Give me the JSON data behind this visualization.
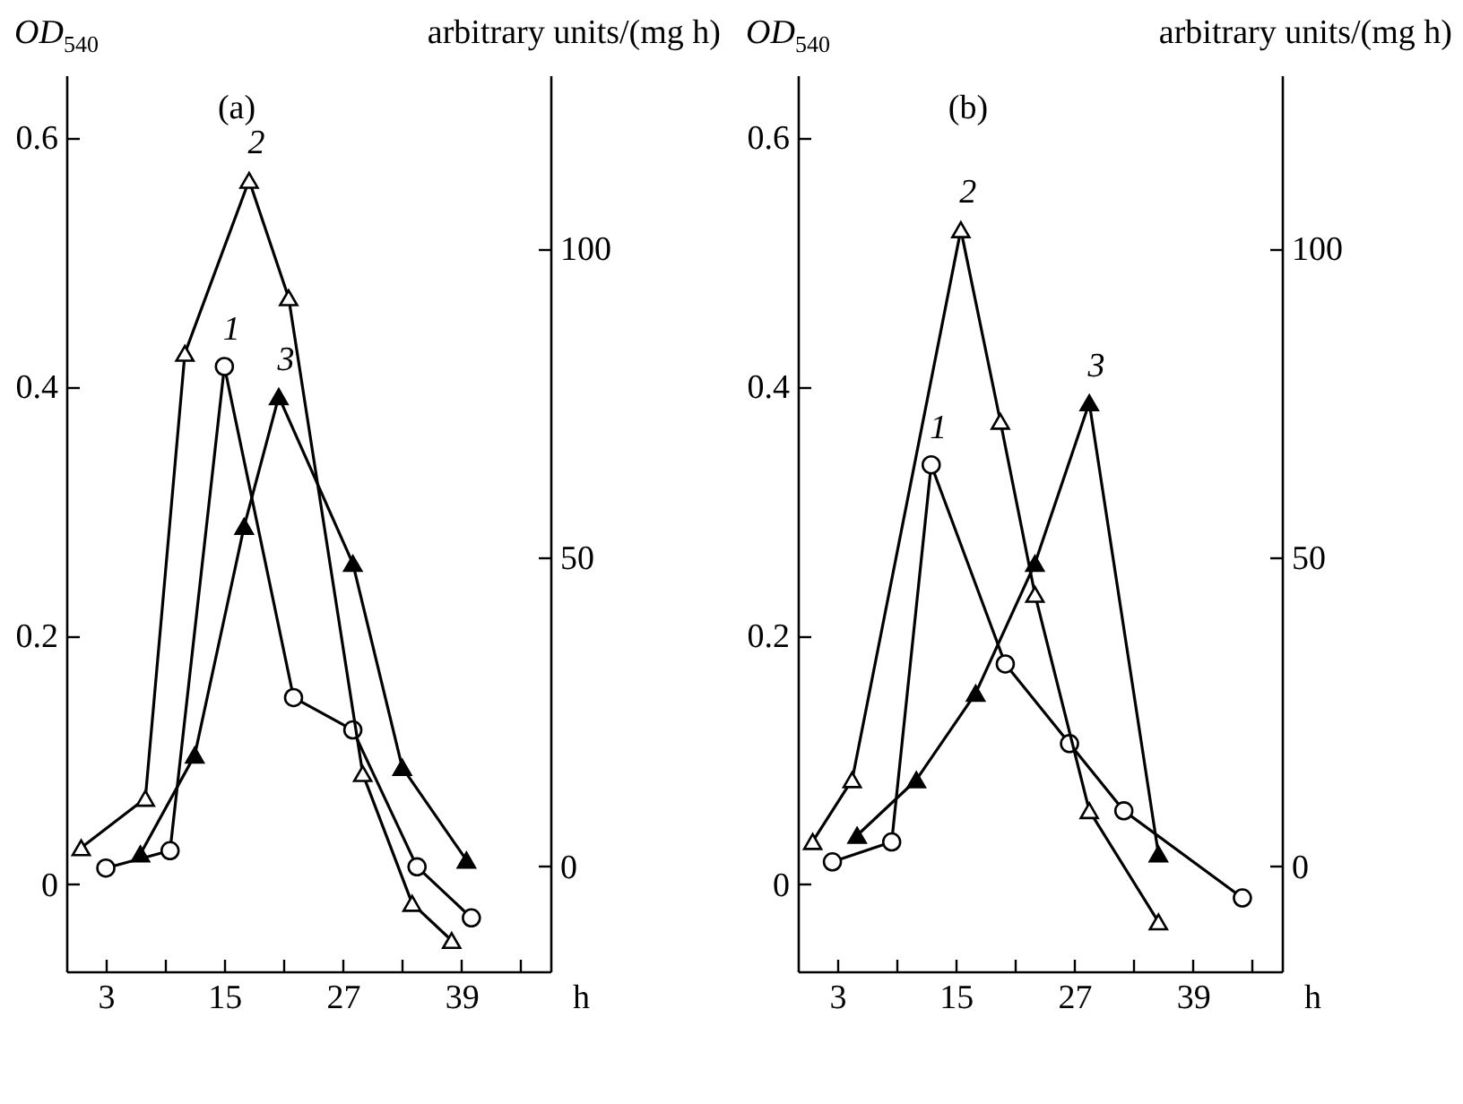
{
  "chart_data": [
    {
      "type": "line",
      "title": "(a)",
      "ylabel": "OD$_{540}$",
      "y2label": "arbitrary units/(mg h)",
      "xlabel": "h",
      "xlim": [
        -1,
        48
      ],
      "xticks": [
        3,
        {
          "value": 9,
          "label": null
        },
        15,
        {
          "value": 21,
          "label": null
        },
        27,
        {
          "value": 33,
          "label": null
        },
        39,
        {
          "value": 45,
          "label": null
        }
      ],
      "ylim": [
        -0.07,
        0.65
      ],
      "yticks": [
        0,
        0.2,
        0.4,
        0.6
      ],
      "y2lim": [
        -17,
        128
      ],
      "y2ticks": [
        0,
        50,
        100
      ],
      "grid": false,
      "legend": false,
      "line_style": "solid",
      "series": [
        {
          "name": "1",
          "color": "#000000",
          "marker": "circle",
          "x": [
            3,
            9.5,
            15,
            22,
            28,
            34.5,
            40
          ],
          "values": [
            0.013,
            0.027,
            0.416,
            0.15,
            0.124,
            0.014,
            -0.027
          ]
        },
        {
          "name": "2",
          "color": "#000000",
          "marker": "triangle",
          "axis": "y2",
          "x": [
            0.5,
            7,
            11,
            17.5,
            21.5,
            29,
            34,
            38
          ],
          "values": [
            3,
            11,
            83,
            111,
            92,
            15,
            -6,
            -12
          ]
        },
        {
          "name": "3",
          "color": "#000000",
          "marker": "triangle",
          "axis": "y2",
          "x": [
            6.5,
            12,
            17,
            20.5,
            28,
            33,
            39.5
          ],
          "values": [
            2,
            18,
            55,
            76,
            49,
            16,
            1
          ]
        }
      ]
    },
    {
      "type": "line",
      "title": "(b)",
      "ylabel": "OD$_{540}$",
      "y2label": "arbitrary units/(mg h)",
      "xlabel": "h",
      "xlim": [
        -1,
        48
      ],
      "xticks": [
        3,
        {
          "value": 9,
          "label": null
        },
        15,
        {
          "value": 21,
          "label": null
        },
        27,
        {
          "value": 33,
          "label": null
        },
        39,
        {
          "value": 45,
          "label": null
        }
      ],
      "ylim": [
        -0.07,
        0.65
      ],
      "yticks": [
        0,
        0.2,
        0.4,
        0.6
      ],
      "y2lim": [
        -17,
        128
      ],
      "y2ticks": [
        0,
        50,
        100
      ],
      "grid": false,
      "legend": false,
      "line_style": "solid",
      "series": [
        {
          "name": "1",
          "color": "#000000",
          "marker": "circle",
          "x": [
            2.5,
            8.5,
            12.5,
            20,
            26.5,
            32,
            44
          ],
          "values": [
            0.018,
            0.034,
            0.337,
            0.177,
            0.113,
            0.059,
            -0.011
          ]
        },
        {
          "name": "2",
          "color": "#000000",
          "marker": "triangle",
          "axis": "y2",
          "x": [
            0.5,
            4.5,
            15.5,
            19.5,
            23,
            28.5,
            35.5
          ],
          "values": [
            4,
            14,
            103,
            72,
            44,
            9,
            -9
          ]
        },
        {
          "name": "3",
          "color": "#000000",
          "marker": "triangle",
          "axis": "y2",
          "x": [
            5,
            11,
            17,
            23,
            28.5,
            35.5
          ],
          "values": [
            5,
            14,
            28,
            49,
            75,
            2
          ]
        }
      ]
    }
  ]
}
